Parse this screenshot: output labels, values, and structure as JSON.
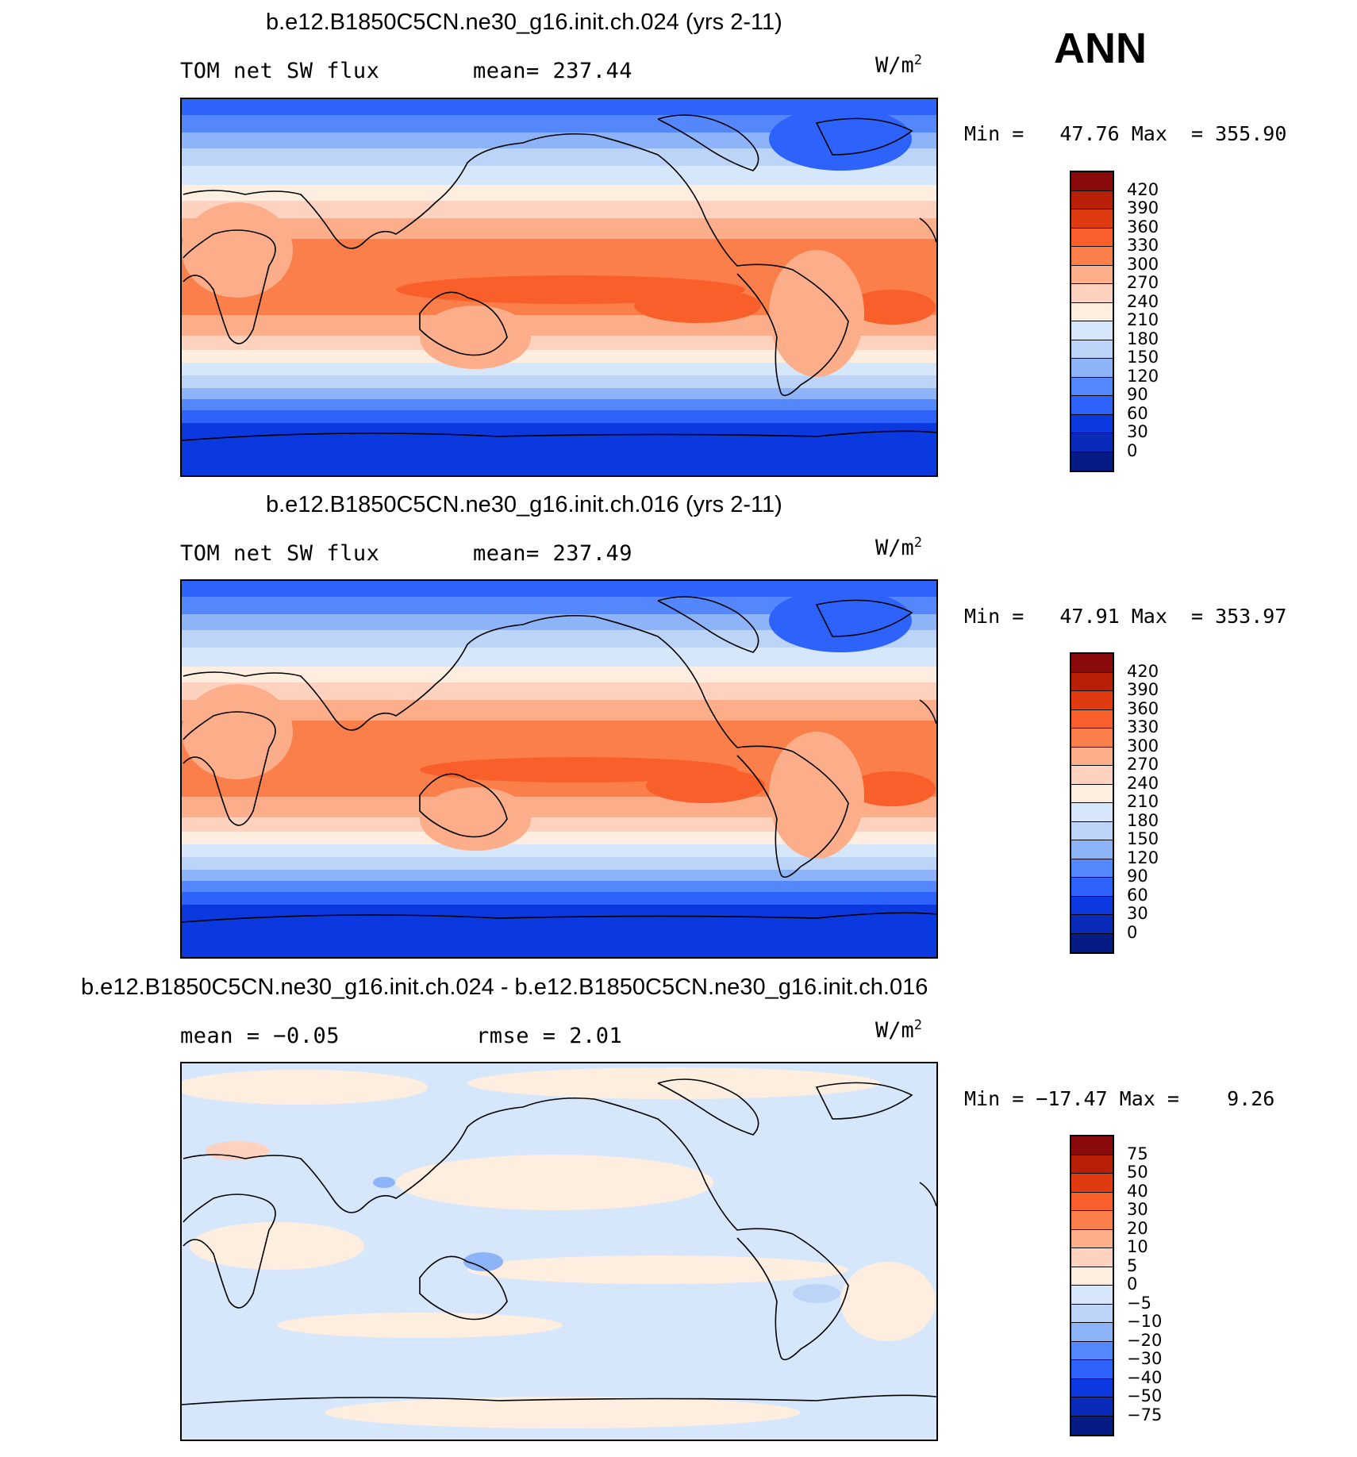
{
  "season": "ANN",
  "units_text": "W/m",
  "units_sup": "2",
  "panels": [
    {
      "title": "b.e12.B1850C5CN.ne30_g16.init.ch.024 (yrs 2-11)",
      "left_label": "TOM net SW flux",
      "center_label": "mean= 237.44",
      "minmax": "Min =   47.76 Max  = 355.90",
      "colorbar": {
        "labels": [
          "420",
          "390",
          "360",
          "330",
          "300",
          "270",
          "240",
          "210",
          "180",
          "150",
          "120",
          "90",
          "60",
          "30",
          "0"
        ],
        "colors": [
          "#8a0b0b",
          "#b81f06",
          "#e03a10",
          "#f95f2a",
          "#fb7f4b",
          "#fcae8a",
          "#fed2bf",
          "#fdeee0",
          "#d6e7fb",
          "#bcd4f8",
          "#8db3f8",
          "#5487fb",
          "#2d62fb",
          "#0b38df",
          "#0a2ab9",
          "#061b86"
        ]
      }
    },
    {
      "title": "b.e12.B1850C5CN.ne30_g16.init.ch.016 (yrs 2-11)",
      "left_label": "TOM net SW flux",
      "center_label": "mean= 237.49",
      "minmax": "Min =   47.91 Max  = 353.97",
      "colorbar": {
        "labels": [
          "420",
          "390",
          "360",
          "330",
          "300",
          "270",
          "240",
          "210",
          "180",
          "150",
          "120",
          "90",
          "60",
          "30",
          "0"
        ],
        "colors": [
          "#8a0b0b",
          "#b81f06",
          "#e03a10",
          "#f95f2a",
          "#fb7f4b",
          "#fcae8a",
          "#fed2bf",
          "#fdeee0",
          "#d6e7fb",
          "#bcd4f8",
          "#8db3f8",
          "#5487fb",
          "#2d62fb",
          "#0b38df",
          "#0a2ab9",
          "#061b86"
        ]
      }
    },
    {
      "title": "b.e12.B1850C5CN.ne30_g16.init.ch.024 - b.e12.B1850C5CN.ne30_g16.init.ch.016",
      "left_label": "mean =   −0.05",
      "center_label": "rmse =    2.01",
      "minmax": "Min = −17.47 Max =    9.26",
      "colorbar": {
        "labels": [
          "75",
          "50",
          "40",
          "30",
          "20",
          "10",
          "5",
          "0",
          "−5",
          "−10",
          "−20",
          "−30",
          "−40",
          "−50",
          "−75"
        ],
        "colors": [
          "#8a0b0b",
          "#b81f06",
          "#e03a10",
          "#f95f2a",
          "#fb7f4b",
          "#fcae8a",
          "#fed2bf",
          "#fdeee0",
          "#d6e7fb",
          "#bcd4f8",
          "#8db3f8",
          "#5487fb",
          "#2d62fb",
          "#0b38df",
          "#0a2ab9",
          "#061b86"
        ]
      }
    }
  ]
}
